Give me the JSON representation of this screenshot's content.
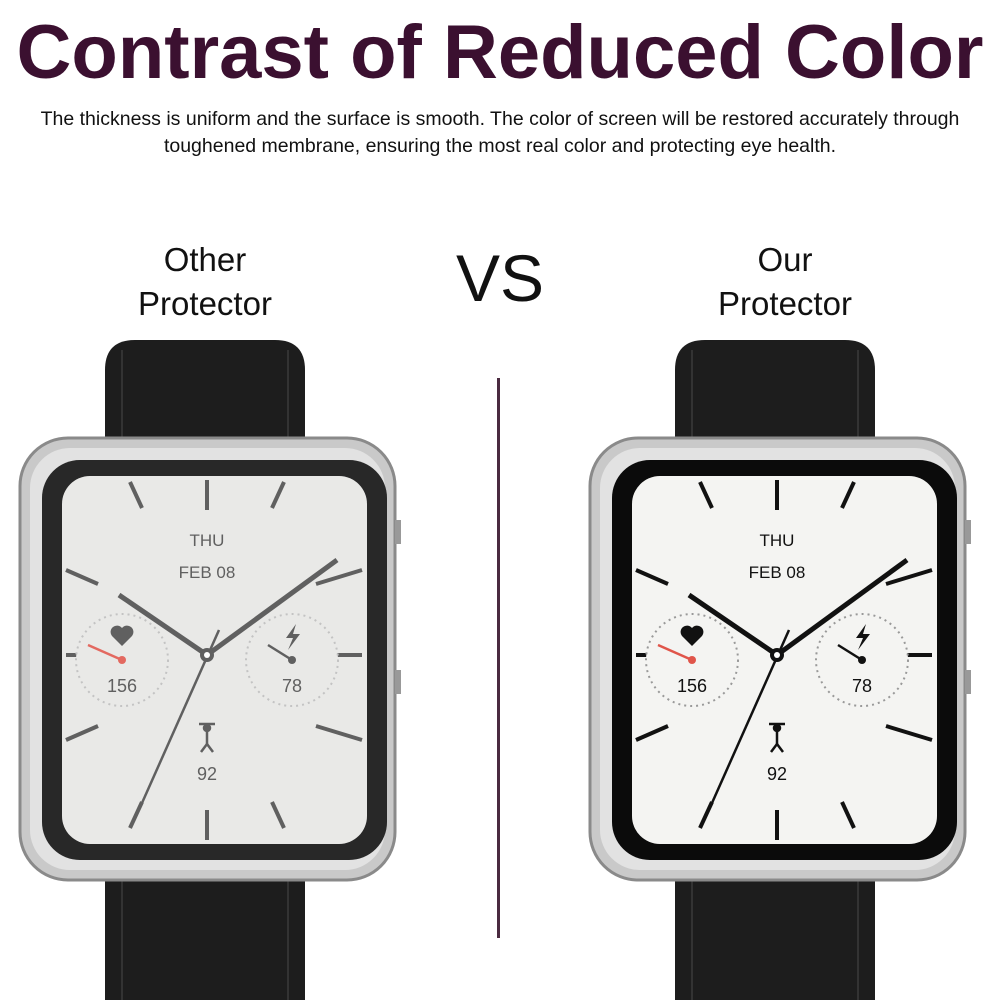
{
  "title": "Contrast of Reduced Color",
  "description": "The thickness is uniform and the surface is smooth. The color of screen will be restored accurately through toughened membrane, ensuring the most real color and protecting eye health.",
  "left_label": {
    "line1": "Other",
    "line2": "Protector"
  },
  "vs": "VS",
  "right_label": {
    "line1": "Our",
    "line2": "Protector"
  },
  "watch_face": {
    "day": "THU",
    "date": "FEB 08",
    "heart_rate": "156",
    "energy": "78",
    "activity": "92"
  },
  "colors": {
    "title": "#3b1030",
    "second_hand_accent": "#e0554a"
  }
}
